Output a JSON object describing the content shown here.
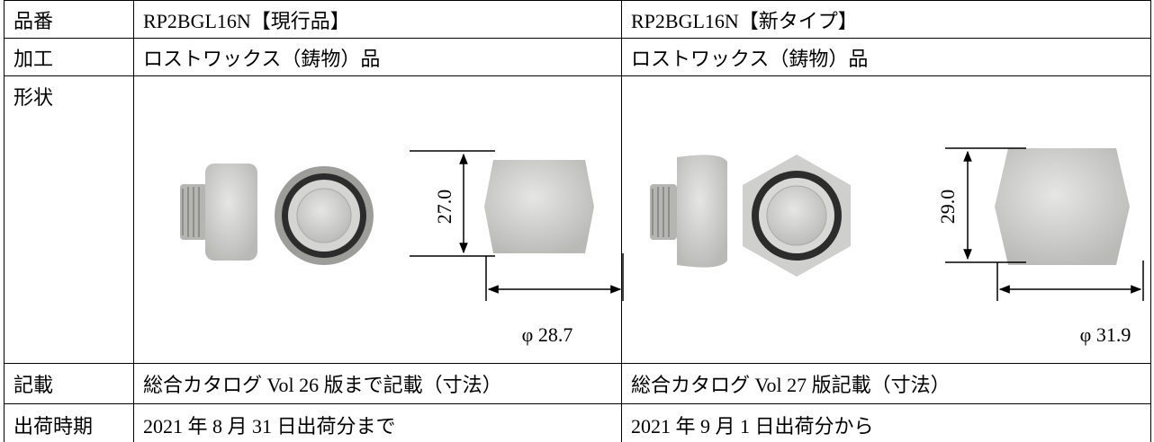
{
  "table": {
    "rows": [
      [
        "品番",
        "RP2BGL16N【現行品】",
        "RP2BGL16N【新タイプ】"
      ],
      [
        "加工",
        "ロストワックス（鋳物）品",
        "ロストワックス（鋳物）品"
      ],
      [
        "形状"
      ],
      [
        "記載",
        "総合カタログ Vol 26 版まで記載（寸法）",
        "総合カタログ Vol 27 版記載（寸法）"
      ],
      [
        "出荷時期",
        "2021 年 8 月 31 日出荷分まで",
        "2021 年 9 月 1 日出荷分から"
      ]
    ]
  },
  "figures": [
    {
      "height": "27.0",
      "diameter": "φ 28.7"
    },
    {
      "height": "29.0",
      "diameter": "φ 31.9"
    }
  ]
}
